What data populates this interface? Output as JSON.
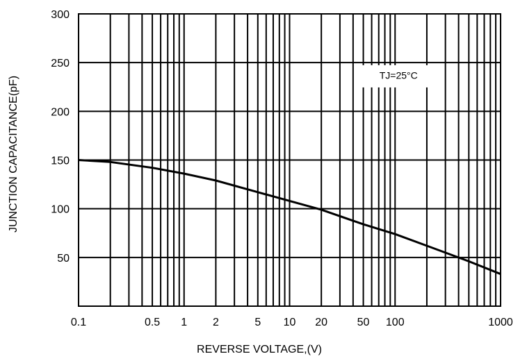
{
  "chart_data": {
    "type": "line",
    "title": "",
    "xlabel": "REVERSE VOLTAGE,(V)",
    "ylabel": "JUNCTION CAPACITANCE(pF)",
    "x_scale": "log",
    "xlim": [
      0.1,
      1000
    ],
    "ylim": [
      0,
      300
    ],
    "grid": true,
    "x_ticks": [
      {
        "value": 0.1,
        "label": "0.1"
      },
      {
        "value": 0.5,
        "label": "0.5"
      },
      {
        "value": 1,
        "label": "1"
      },
      {
        "value": 2,
        "label": "2"
      },
      {
        "value": 5,
        "label": "5"
      },
      {
        "value": 10,
        "label": "10"
      },
      {
        "value": 20,
        "label": "20"
      },
      {
        "value": 50,
        "label": "50"
      },
      {
        "value": 100,
        "label": "100"
      },
      {
        "value": 1000,
        "label": "1000"
      }
    ],
    "x_gridlines": [
      0.2,
      0.3,
      0.4,
      0.5,
      0.6,
      0.7,
      0.8,
      0.9,
      1,
      2,
      3,
      4,
      5,
      6,
      7,
      8,
      9,
      10,
      20,
      30,
      40,
      50,
      60,
      70,
      80,
      90,
      100,
      200,
      300,
      400,
      500,
      600,
      700,
      800,
      900
    ],
    "y_ticks": [
      {
        "value": 50,
        "label": "50"
      },
      {
        "value": 100,
        "label": "100"
      },
      {
        "value": 150,
        "label": "150"
      },
      {
        "value": 200,
        "label": "200"
      },
      {
        "value": 250,
        "label": "250"
      },
      {
        "value": 300,
        "label": "300"
      }
    ],
    "annotation": {
      "text": "TJ=25°C",
      "x": 100,
      "y": 206
    },
    "series": [
      {
        "x": [
          0.1,
          0.2,
          0.5,
          1,
          2,
          5,
          10,
          20,
          50,
          100,
          200,
          500,
          1000
        ],
        "y": [
          150,
          148,
          142,
          136,
          129,
          117,
          108,
          99,
          84,
          74,
          62,
          46,
          33
        ]
      }
    ]
  }
}
